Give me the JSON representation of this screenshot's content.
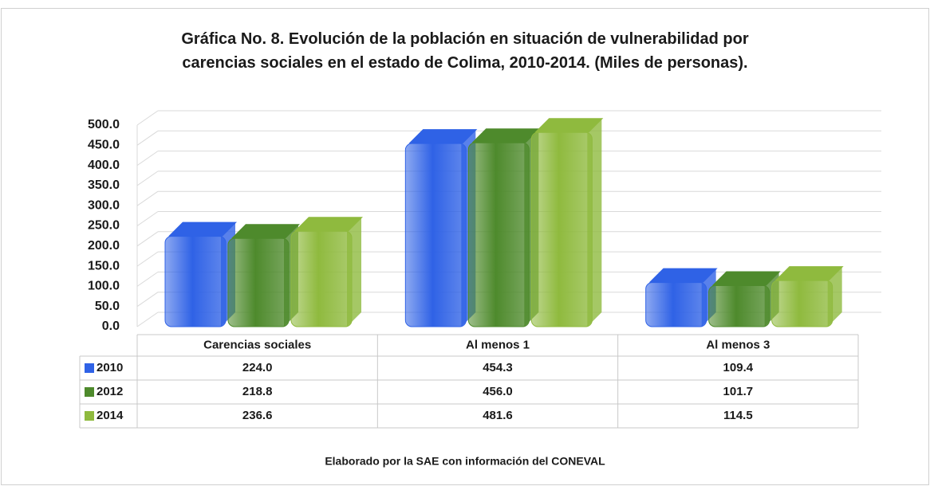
{
  "chart_data": {
    "type": "bar",
    "title": "Gráfica No. 8. Evolución de la población en situación de vulnerabilidad por carencias sociales en el estado de Colima, 2010-2014. (Miles de personas).",
    "note": "Elaborado por la SAE con información del CONEVAL",
    "categories": [
      "Carencias sociales",
      "Al menos 1",
      "Al menos 3"
    ],
    "series": [
      {
        "name": "2010",
        "color": "#2f62e6",
        "values": [
          224.0,
          454.3,
          109.4
        ],
        "value_labels": [
          "224.0",
          "454.3",
          "109.4"
        ]
      },
      {
        "name": "2012",
        "color": "#4e8a2c",
        "values": [
          218.8,
          456.0,
          101.7
        ],
        "value_labels": [
          "218.8",
          "456.0",
          "101.7"
        ]
      },
      {
        "name": "2014",
        "color": "#8fba3e",
        "values": [
          236.6,
          481.6,
          114.5
        ],
        "value_labels": [
          "236.6",
          "481.6",
          "114.5"
        ]
      }
    ],
    "ylim": [
      0,
      500
    ],
    "yticks": [
      {
        "value": 0,
        "label": "0.0"
      },
      {
        "value": 50,
        "label": "50.0"
      },
      {
        "value": 100,
        "label": "100.0"
      },
      {
        "value": 150,
        "label": "150.0"
      },
      {
        "value": 200,
        "label": "200.0"
      },
      {
        "value": 250,
        "label": "250.0"
      },
      {
        "value": 300,
        "label": "300.0"
      },
      {
        "value": 350,
        "label": "350.0"
      },
      {
        "value": 400,
        "label": "400.0"
      },
      {
        "value": 450,
        "label": "450.0"
      },
      {
        "value": 500,
        "label": "500.0"
      }
    ],
    "grid": true
  }
}
